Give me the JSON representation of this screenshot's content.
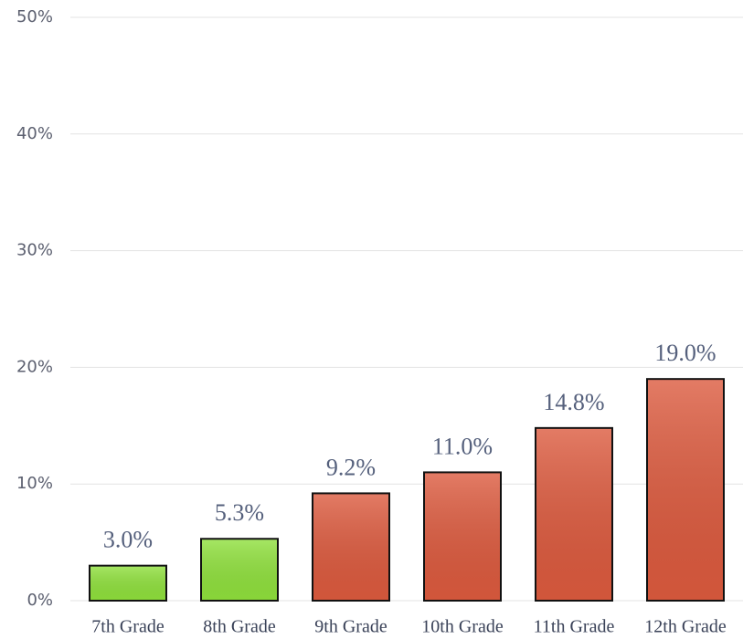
{
  "chart_data": {
    "type": "bar",
    "categories": [
      "7th Grade",
      "8th Grade",
      "9th Grade",
      "10th Grade",
      "11th Grade",
      "12th Grade"
    ],
    "values": [
      3.0,
      5.3,
      9.2,
      11.0,
      14.8,
      19.0
    ],
    "value_labels": [
      "3.0%",
      "5.3%",
      "9.2%",
      "11.0%",
      "14.8%",
      "19.0%"
    ],
    "colors": [
      "#8fe03c",
      "#8fe03c",
      "#dc5a3e",
      "#dc5a3e",
      "#dc5a3e",
      "#dc5a3e"
    ],
    "ylim": [
      0,
      50
    ],
    "yticks": [
      {
        "value": 0,
        "label": "0%"
      },
      {
        "value": 10,
        "label": "10%"
      },
      {
        "value": 20,
        "label": "20%"
      },
      {
        "value": 30,
        "label": "30%"
      },
      {
        "value": 40,
        "label": "40%"
      },
      {
        "value": 50,
        "label": "50%"
      }
    ],
    "grid": true
  }
}
